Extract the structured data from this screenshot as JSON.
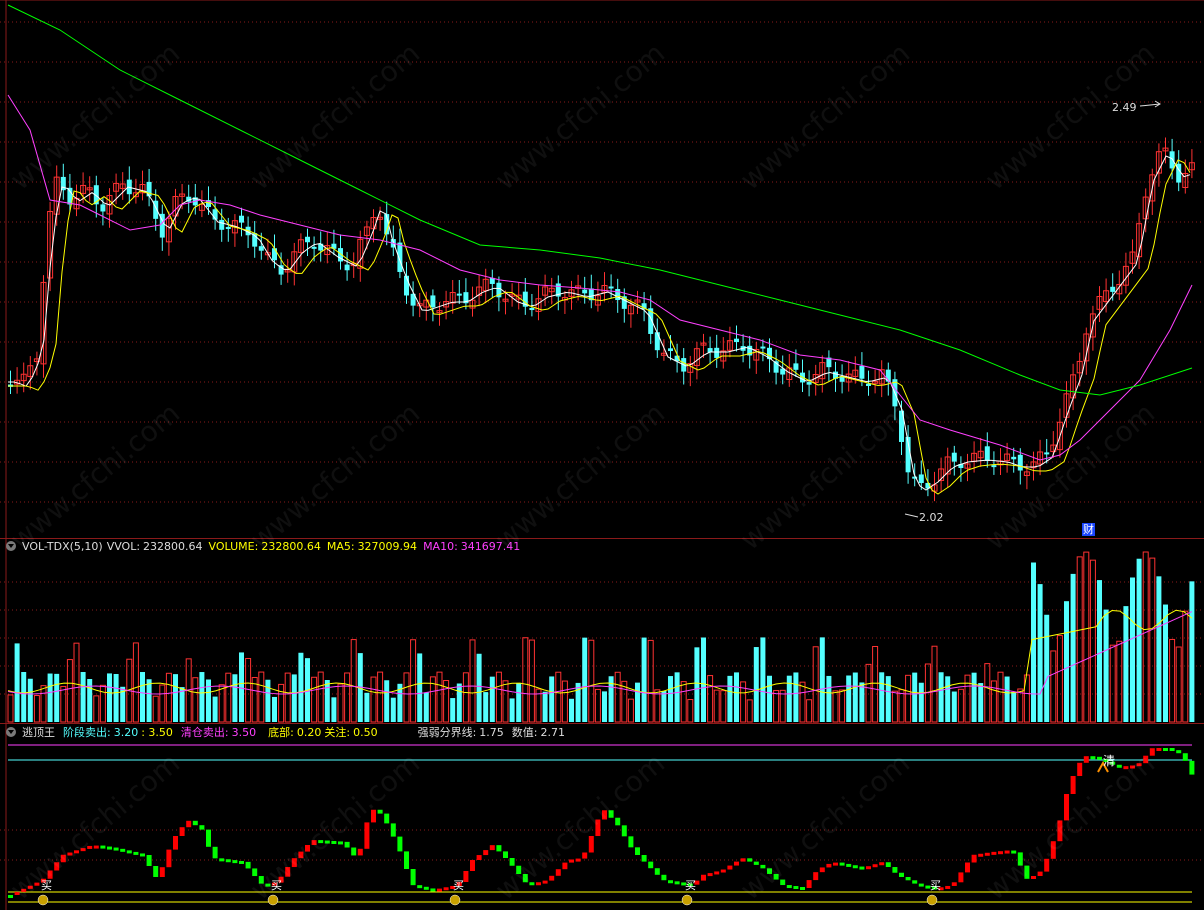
{
  "watermark": "www.cfchi.com",
  "main_chart": {
    "high_label": "2.49",
    "low_label": "2.02",
    "finance_badge": "财"
  },
  "vol_panel": {
    "indicator_name": "VOL-TDX(5,10)",
    "vvol_label": "VVOL:",
    "vvol_value": "232800.64",
    "volume_label": "VOLUME:",
    "volume_value": "232800.64",
    "ma5_label": "MA5:",
    "ma5_value": "327009.94",
    "ma10_label": "MA10:",
    "ma10_value": "341697.41"
  },
  "escape_panel": {
    "indicator_name": "逃顶王",
    "stage_sell_label": "阶段卖出:",
    "stage_sell_value": "3.20",
    "stage_sell_value2": ": 3.50",
    "clear_sell_label": "清仓卖出:",
    "clear_sell_value": "3.50",
    "bottom_label": "底部:",
    "bottom_value": "0.20",
    "watch_label": "关注:",
    "watch_value": "0.50",
    "strength_label": "强弱分界线:",
    "strength_value": "1.75",
    "numeric_label": "数值:",
    "numeric_value": "2.71",
    "buy_marker": "买",
    "clear_marker": "清"
  },
  "chart_data": [
    {
      "type": "candlestick",
      "title": "",
      "ylim": [
        1.98,
        2.55
      ],
      "high_marker": 2.49,
      "low_marker": 2.02,
      "series": [
        {
          "name": "",
          "color": "#ffffff"
        },
        {
          "name": "",
          "color": "#ffff00"
        },
        {
          "name": "",
          "color": "#ff40ff"
        },
        {
          "name": "",
          "color": "#00ff00"
        }
      ]
    },
    {
      "type": "bar",
      "title": "VOL-TDX(5,10)",
      "series": [
        {
          "name": "VOLUME",
          "value": 232800.64,
          "color": "#ffff00"
        },
        {
          "name": "MA5",
          "value": 327009.94,
          "color": "#ffff00"
        },
        {
          "name": "MA10",
          "value": 341697.41,
          "color": "#ff40ff"
        }
      ]
    },
    {
      "type": "line",
      "title": "逃顶王",
      "levels": {
        "stage_sell": 3.2,
        "clear_sell": 3.5,
        "bottom": 0.2,
        "watch": 0.5,
        "strength_line": 1.75
      },
      "current_value": 2.71
    }
  ],
  "colors": {
    "up": "#ff3232",
    "down": "#54ffff",
    "ma_fast": "#ffffff",
    "ma_mid": "#ffff00",
    "ma_slow": "#ff40ff",
    "ma_long": "#00ff00",
    "grid": "#8a1a1a",
    "escape_up": "#ff0000",
    "escape_down": "#00ff00"
  }
}
